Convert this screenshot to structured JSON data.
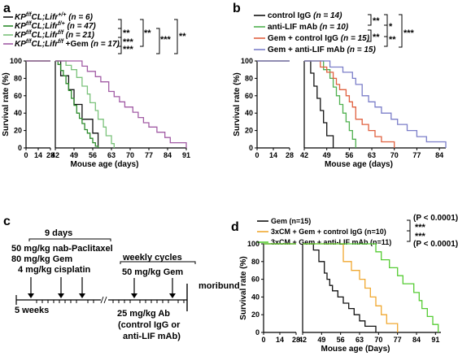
{
  "chart_data": [
    {
      "panel": "a",
      "type": "line",
      "step": true,
      "xlabel": "Mouse age (days)",
      "ylabel": "Survival rate (%)",
      "xticks": [
        0,
        14,
        28,
        42,
        49,
        56,
        63,
        70,
        77,
        84,
        91
      ],
      "yticks": [
        0,
        20,
        40,
        60,
        80,
        100
      ],
      "xlim": [
        0,
        91
      ],
      "ylim": [
        0,
        100
      ],
      "axis_break": [
        28,
        42
      ],
      "legend": [
        {
          "prefix": "KP",
          "sup": "f/f",
          "mid": "CL;Lifr",
          "sup2": "+/+",
          "suffix": "",
          "n": "(n = 6)",
          "color": "#111111"
        },
        {
          "prefix": "KP",
          "sup": "f/f",
          "mid": "CL;Lifr",
          "sup2": "f/+",
          "suffix": "",
          "n": "(n = 47)",
          "color": "#2c8a2c"
        },
        {
          "prefix": "KP",
          "sup": "f/f",
          "mid": "CL;Lifr",
          "sup2": "f/f",
          "suffix": "",
          "n": "(n = 21)",
          "color": "#7bc27b"
        },
        {
          "prefix": "KP",
          "sup": "f/f",
          "mid": "CL;Lifr",
          "sup2": "f/f",
          "suffix": " +Gem",
          "n": "(n = 17)",
          "color": "#a25ca5"
        }
      ],
      "significance": [
        "**",
        "***",
        "**",
        "***",
        "***",
        "**"
      ],
      "series": [
        {
          "color": "#111111",
          "points": [
            [
              0,
              100
            ],
            [
              42,
              100
            ],
            [
              44,
              83
            ],
            [
              47,
              67
            ],
            [
              49,
              50
            ],
            [
              52,
              33
            ],
            [
              56,
              17
            ],
            [
              58,
              0
            ]
          ]
        },
        {
          "color": "#2c8a2c",
          "points": [
            [
              0,
              100
            ],
            [
              42,
              100
            ],
            [
              43,
              96
            ],
            [
              44,
              89
            ],
            [
              45,
              83
            ],
            [
              46,
              74
            ],
            [
              47,
              66
            ],
            [
              48,
              57
            ],
            [
              49,
              49
            ],
            [
              50,
              40
            ],
            [
              51,
              34
            ],
            [
              52,
              28
            ],
            [
              53,
              21
            ],
            [
              54,
              17
            ],
            [
              55,
              11
            ],
            [
              56,
              6
            ],
            [
              57,
              2
            ],
            [
              58,
              0
            ]
          ]
        },
        {
          "color": "#7bc27b",
          "points": [
            [
              0,
              100
            ],
            [
              42,
              100
            ],
            [
              46,
              95
            ],
            [
              48,
              90
            ],
            [
              50,
              81
            ],
            [
              52,
              71
            ],
            [
              54,
              62
            ],
            [
              55,
              52
            ],
            [
              57,
              43
            ],
            [
              58,
              33
            ],
            [
              60,
              24
            ],
            [
              61,
              14
            ],
            [
              63,
              5
            ],
            [
              64,
              0
            ]
          ]
        },
        {
          "color": "#a25ca5",
          "points": [
            [
              0,
              100
            ],
            [
              42,
              100
            ],
            [
              52,
              94
            ],
            [
              54,
              88
            ],
            [
              57,
              82
            ],
            [
              59,
              76
            ],
            [
              62,
              65
            ],
            [
              64,
              59
            ],
            [
              66,
              53
            ],
            [
              68,
              47
            ],
            [
              71,
              41
            ],
            [
              73,
              35
            ],
            [
              75,
              29
            ],
            [
              77,
              24
            ],
            [
              80,
              18
            ],
            [
              83,
              12
            ],
            [
              85,
              6
            ],
            [
              88,
              6
            ],
            [
              91,
              0
            ]
          ]
        }
      ]
    },
    {
      "panel": "b",
      "type": "line",
      "step": true,
      "xlabel": "Mouse age (days)",
      "ylabel": "Survival rate (%)",
      "xticks": [
        0,
        14,
        28,
        42,
        49,
        56,
        63,
        70,
        77,
        84
      ],
      "yticks": [
        0,
        20,
        40,
        60,
        80,
        100
      ],
      "xlim": [
        0,
        86
      ],
      "ylim": [
        0,
        100
      ],
      "axis_break": [
        28,
        42
      ],
      "legend": [
        {
          "label": "control IgG",
          "n": "(n = 14)",
          "color": "#111111"
        },
        {
          "label": "anti-LIF mAb",
          "n": "(n = 10)",
          "color": "#4fb04f"
        },
        {
          "label": "Gem + control IgG",
          "n": "(n = 15)",
          "color": "#e0603f"
        },
        {
          "label": "Gem + anti-LIF mAb",
          "n": "(n = 15)",
          "color": "#7b7ec9"
        }
      ],
      "significance": [
        "**",
        "*",
        "**",
        "**",
        "***"
      ],
      "series": [
        {
          "color": "#111111",
          "points": [
            [
              0,
              100
            ],
            [
              42,
              100
            ],
            [
              44,
              86
            ],
            [
              45,
              71
            ],
            [
              46,
              57
            ],
            [
              47,
              43
            ],
            [
              48,
              29
            ],
            [
              49,
              14
            ],
            [
              51,
              0
            ]
          ]
        },
        {
          "color": "#4fb04f",
          "points": [
            [
              0,
              100
            ],
            [
              42,
              100
            ],
            [
              48,
              90
            ],
            [
              50,
              80
            ],
            [
              51,
              70
            ],
            [
              52,
              60
            ],
            [
              53,
              50
            ],
            [
              54,
              40
            ],
            [
              55,
              30
            ],
            [
              56,
              20
            ],
            [
              57,
              10
            ],
            [
              58,
              0
            ]
          ]
        },
        {
          "color": "#e0603f",
          "points": [
            [
              0,
              100
            ],
            [
              42,
              100
            ],
            [
              47,
              93
            ],
            [
              49,
              87
            ],
            [
              51,
              80
            ],
            [
              52,
              73
            ],
            [
              53,
              67
            ],
            [
              55,
              60
            ],
            [
              56,
              53
            ],
            [
              57,
              47
            ],
            [
              58,
              33
            ],
            [
              60,
              27
            ],
            [
              62,
              20
            ],
            [
              64,
              13
            ],
            [
              66,
              7
            ],
            [
              70,
              0
            ]
          ]
        },
        {
          "color": "#7b7ec9",
          "points": [
            [
              0,
              100
            ],
            [
              42,
              100
            ],
            [
              50,
              93
            ],
            [
              54,
              87
            ],
            [
              57,
              80
            ],
            [
              58,
              73
            ],
            [
              60,
              60
            ],
            [
              62,
              53
            ],
            [
              64,
              47
            ],
            [
              66,
              40
            ],
            [
              69,
              33
            ],
            [
              71,
              27
            ],
            [
              74,
              20
            ],
            [
              77,
              13
            ],
            [
              80,
              7
            ],
            [
              84,
              7
            ],
            [
              86,
              0
            ]
          ]
        }
      ]
    },
    {
      "panel": "d",
      "type": "line",
      "step": true,
      "xlabel": "Mouse age (Days)",
      "ylabel": "Survival rate (%)",
      "xticks": [
        0,
        14,
        28,
        42,
        49,
        56,
        63,
        70,
        77,
        84,
        91
      ],
      "yticks": [
        0,
        20,
        40,
        60,
        80,
        100
      ],
      "xlim": [
        0,
        93
      ],
      "ylim": [
        0,
        100
      ],
      "axis_break": [
        28,
        42
      ],
      "legend": [
        {
          "label": "Gem (n=15)",
          "color": "#111111"
        },
        {
          "label": "3xCM + Gem + control  IgG (n=10)",
          "color": "#f0a830"
        },
        {
          "label": "3xCM + Gem + anti-LIF mAb (n=11)",
          "color": "#55cc33"
        }
      ],
      "pvalues": [
        "(P < 0.0001)",
        "***",
        "***",
        "(P < 0.0001)"
      ],
      "series": [
        {
          "color": "#111111",
          "points": [
            [
              0,
              100
            ],
            [
              42,
              100
            ],
            [
              46,
              93
            ],
            [
              48,
              80
            ],
            [
              50,
              67
            ],
            [
              51,
              60
            ],
            [
              52,
              53
            ],
            [
              53,
              47
            ],
            [
              55,
              40
            ],
            [
              57,
              33
            ],
            [
              59,
              27
            ],
            [
              61,
              20
            ],
            [
              63,
              13
            ],
            [
              65,
              7
            ],
            [
              69,
              0
            ]
          ]
        },
        {
          "color": "#f0a830",
          "points": [
            [
              0,
              100
            ],
            [
              42,
              100
            ],
            [
              56,
              100
            ],
            [
              57,
              80
            ],
            [
              60,
              70
            ],
            [
              63,
              60
            ],
            [
              65,
              50
            ],
            [
              67,
              40
            ],
            [
              69,
              30
            ],
            [
              71,
              20
            ],
            [
              73,
              10
            ],
            [
              77,
              0
            ]
          ]
        },
        {
          "color": "#55cc33",
          "points": [
            [
              0,
              100
            ],
            [
              42,
              100
            ],
            [
              67,
              100
            ],
            [
              69,
              91
            ],
            [
              71,
              82
            ],
            [
              74,
              73
            ],
            [
              77,
              64
            ],
            [
              79,
              55
            ],
            [
              83,
              45
            ],
            [
              85,
              36
            ],
            [
              86,
              27
            ],
            [
              88,
              18
            ],
            [
              90,
              9
            ],
            [
              92,
              0
            ]
          ]
        }
      ]
    }
  ],
  "panel_c": {
    "label": "c",
    "days": "9 days",
    "drugs": [
      "50 mg/kg nab-Paclitaxel",
      "80 mg/kg Gem",
      "4 mg/kg cisplatin"
    ],
    "weekly": "weekly cycles",
    "weekly_dose": "50 mg/kg Gem",
    "start": "5 weeks",
    "end": "moribund",
    "antibody": [
      "25 mg/kg Ab",
      "(control IgG or",
      "anti-LIF mAb)"
    ]
  }
}
